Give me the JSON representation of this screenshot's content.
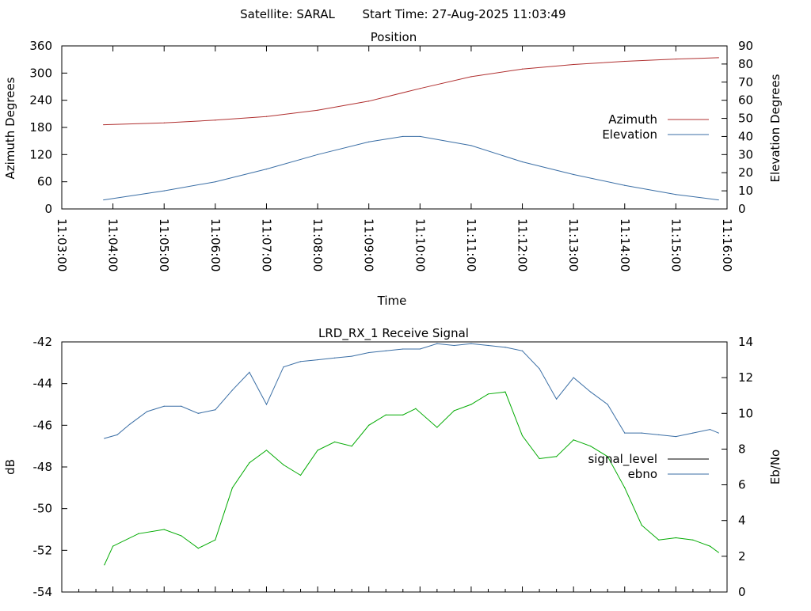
{
  "header": {
    "satellite": "Satellite: SARAL",
    "start_time": "Start Time: 27-Aug-2025 11:03:49"
  },
  "chart_data": [
    {
      "type": "line",
      "title": "Position",
      "xlabel": "Time",
      "ylabel": "Azimuth Degrees",
      "y2label": "Elevation Degrees",
      "ylim": [
        0,
        360
      ],
      "y2lim": [
        0,
        90
      ],
      "y_ticks": [
        0,
        60,
        120,
        180,
        240,
        300,
        360
      ],
      "y2_ticks": [
        0,
        10,
        20,
        30,
        40,
        50,
        60,
        70,
        80,
        90
      ],
      "x_ticks": [
        "11:03:00",
        "11:04:00",
        "11:05:00",
        "11:06:00",
        "11:07:00",
        "11:08:00",
        "11:09:00",
        "11:10:00",
        "11:11:00",
        "11:12:00",
        "11:13:00",
        "11:14:00",
        "11:15:00",
        "11:16:00"
      ],
      "legend_position": "right",
      "colors": {
        "azimuth": "#b03030",
        "elevation": "#3a6ea5"
      },
      "series": [
        {
          "name": "Azimuth",
          "axis": "left",
          "x": [
            "11:03:49",
            "11:05:00",
            "11:06:00",
            "11:07:00",
            "11:08:00",
            "11:09:00",
            "11:10:00",
            "11:11:00",
            "11:12:00",
            "11:13:00",
            "11:14:00",
            "11:15:00",
            "11:15:50"
          ],
          "values": [
            186,
            190,
            196,
            204,
            218,
            238,
            266,
            292,
            309,
            319,
            326,
            331,
            334
          ]
        },
        {
          "name": "Elevation",
          "axis": "right",
          "x": [
            "11:03:49",
            "11:05:00",
            "11:06:00",
            "11:07:00",
            "11:08:00",
            "11:09:00",
            "11:09:40",
            "11:10:00",
            "11:11:00",
            "11:12:00",
            "11:13:00",
            "11:14:00",
            "11:15:00",
            "11:15:50"
          ],
          "values": [
            5,
            10,
            15,
            22,
            30,
            37,
            40,
            40,
            35,
            26,
            19,
            13,
            8,
            5
          ]
        }
      ]
    },
    {
      "type": "line",
      "title": "LRD_RX_1 Receive Signal",
      "ylabel": "dB",
      "y2label": "Eb/No",
      "ylim": [
        -54,
        -42
      ],
      "y2lim": [
        0,
        14
      ],
      "y_ticks": [
        -54,
        -52,
        -50,
        -48,
        -46,
        -44,
        -42
      ],
      "y2_ticks": [
        0,
        2,
        4,
        6,
        8,
        10,
        12,
        14
      ],
      "legend_position": "right",
      "colors": {
        "signal_level_legend": "#000000",
        "signal_level_trace": "#00aa00",
        "ebno": "#3a6ea5"
      },
      "series": [
        {
          "name": "signal_level",
          "axis": "left",
          "x": [
            "11:03:50",
            "11:04:00",
            "11:04:30",
            "11:05:00",
            "11:05:20",
            "11:05:40",
            "11:06:00",
            "11:06:20",
            "11:06:40",
            "11:07:00",
            "11:07:20",
            "11:07:40",
            "11:08:00",
            "11:08:20",
            "11:08:40",
            "11:09:00",
            "11:09:20",
            "11:09:40",
            "11:09:55",
            "11:10:20",
            "11:10:40",
            "11:11:00",
            "11:11:20",
            "11:11:40",
            "11:12:00",
            "11:12:20",
            "11:12:40",
            "11:13:00",
            "11:13:20",
            "11:13:40",
            "11:14:00",
            "11:14:20",
            "11:14:40",
            "11:15:00",
            "11:15:20",
            "11:15:40",
            "11:15:50"
          ],
          "values": [
            -52.7,
            -51.8,
            -51.2,
            -51.0,
            -51.3,
            -51.9,
            -51.5,
            -49.0,
            -47.8,
            -47.2,
            -47.9,
            -48.4,
            -47.2,
            -46.8,
            -47.0,
            -46.0,
            -45.5,
            -45.5,
            -45.2,
            -46.1,
            -45.3,
            -45.0,
            -44.5,
            -44.4,
            -46.5,
            -47.6,
            -47.5,
            -46.7,
            -47.0,
            -47.5,
            -49.0,
            -50.8,
            -51.5,
            -51.4,
            -51.5,
            -51.8,
            -52.1
          ]
        },
        {
          "name": "ebno",
          "axis": "right",
          "x": [
            "11:03:50",
            "11:04:05",
            "11:04:20",
            "11:04:40",
            "11:05:00",
            "11:05:20",
            "11:05:40",
            "11:06:00",
            "11:06:20",
            "11:06:40",
            "11:07:00",
            "11:07:20",
            "11:07:40",
            "11:08:00",
            "11:08:20",
            "11:08:40",
            "11:09:00",
            "11:09:20",
            "11:09:40",
            "11:10:00",
            "11:10:20",
            "11:10:40",
            "11:11:00",
            "11:11:20",
            "11:11:40",
            "11:12:00",
            "11:12:20",
            "11:12:40",
            "11:13:00",
            "11:13:20",
            "11:13:40",
            "11:14:00",
            "11:14:20",
            "11:14:40",
            "11:15:00",
            "11:15:20",
            "11:15:40",
            "11:15:50"
          ],
          "values": [
            8.6,
            8.8,
            9.4,
            10.1,
            10.4,
            10.4,
            10.0,
            10.2,
            11.3,
            12.3,
            10.5,
            12.6,
            12.9,
            13.0,
            13.1,
            13.2,
            13.4,
            13.5,
            13.6,
            13.6,
            13.9,
            13.8,
            13.9,
            13.8,
            13.7,
            13.5,
            12.5,
            10.8,
            12.0,
            11.2,
            10.5,
            8.9,
            8.9,
            8.8,
            8.7,
            8.9,
            9.1,
            8.9
          ]
        }
      ]
    }
  ]
}
